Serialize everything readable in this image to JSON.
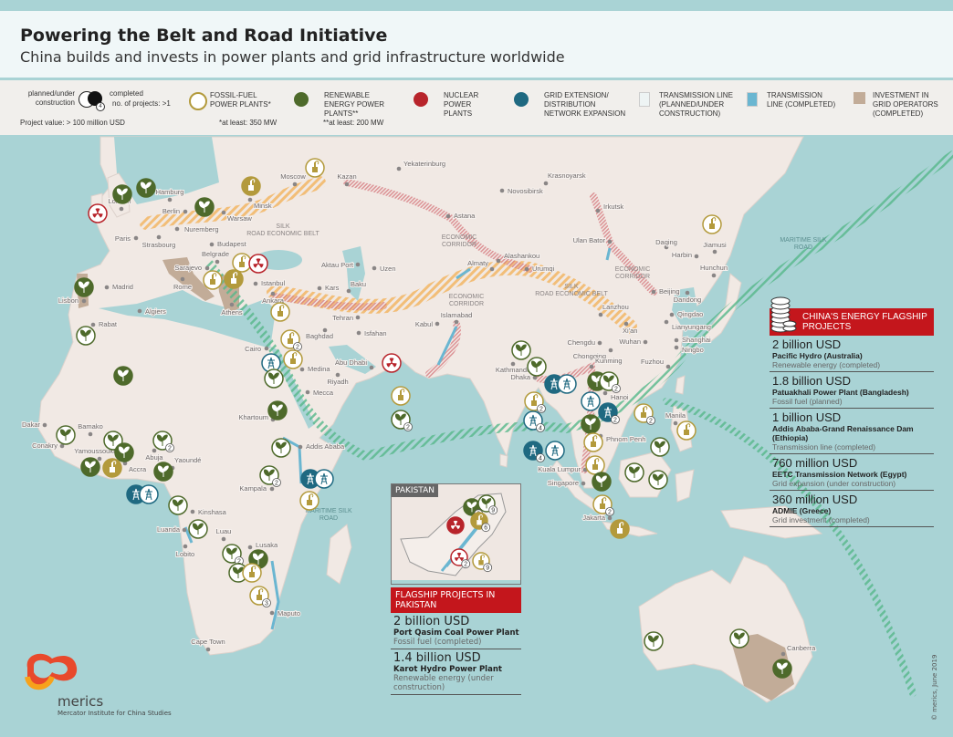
{
  "header": {
    "title": "Powering the Belt and Road Initiative",
    "subtitle": "China builds and invests in power plants and grid infrastructure worldwide"
  },
  "legend": {
    "planned": "planned/under construction",
    "completed": "completed",
    "multiple": "no. of projects: >1",
    "multiple_sample": "4",
    "project_value": "Project value: > 100 million USD",
    "fossil": "FOSSIL-FUEL POWER PLANTS*",
    "fossil_note": "*at least: 350 MW",
    "renewable": "RENEWABLE ENERGY POWER PLANTS**",
    "renewable_note": "**at least: 200 MW",
    "nuclear": "NUCLEAR POWER PLANTS",
    "grid": "GRID EXTENSION/ DISTRIBUTION NETWORK EXPANSION",
    "line_planned": "TRANSMISSION LINE (PLANNED/UNDER CONSTRUCTION)",
    "line_completed": "TRANSMISSION LINE (COMPLETED)",
    "investment": "INVESTMENT IN GRID OPERATORS (COMPLETED)"
  },
  "colors": {
    "fossil": "#b39a3c",
    "renewable": "#4e6a2b",
    "nuclear": "#b8242b",
    "grid": "#1f6981",
    "sea": "#a9d3d5",
    "land": "#f1e9e4",
    "investment": "#c2ac98",
    "accent_red": "#c4161c"
  },
  "corridor_labels": [
    "SILK ROAD ECONOMIC BELT",
    "ECONOMIC CORRIDOR",
    "ECONOMIC CORRIDOR",
    "SILK ROAD ECONOMIC BELT",
    "ECONOMIC CORRIDOR",
    "MARITIME SILK ROAD",
    "MARITIME SILK ROAD"
  ],
  "cities": [
    "London",
    "Hamburg",
    "Berlin",
    "Moscow",
    "Minsk",
    "Warsaw",
    "Paris",
    "Nuremberg",
    "Strasbourg",
    "Budapest",
    "Belgrade",
    "Sarajevo",
    "Rome",
    "Madrid",
    "Lisbon",
    "Algiers",
    "Rabat",
    "Athens",
    "Istanbul",
    "Ankara",
    "Tehran",
    "Isfahan",
    "Baghdad",
    "Kars",
    "Baku",
    "Aktau Port",
    "Uzen",
    "Cairo",
    "Medina",
    "Mecca",
    "Riyadh",
    "Abu Dhabi",
    "Khartoum",
    "Addis Ababa",
    "Kampala",
    "Kinshasa",
    "Luanda",
    "Luau",
    "Lobito",
    "Lusaka",
    "Maputo",
    "Cape Town",
    "Dakar",
    "Bamako",
    "Conakry",
    "Yamoussoukro",
    "Accra",
    "Abuja",
    "Yaoundé",
    "Kazan",
    "Yekaterinburg",
    "Novosibirsk",
    "Krasnoyarsk",
    "Irkutsk",
    "Astana",
    "Ulan Bator",
    "Alashankou",
    "Almaty",
    "Urumqi",
    "Kabul",
    "Islamabad",
    "Daqing",
    "Harbin",
    "Jiamusi",
    "Hunchun",
    "Beijing",
    "Dandong",
    "Qingdao",
    "Lianyungang",
    "Shanghai",
    "Ningbo",
    "Lanzhou",
    "Xi'an",
    "Wuhan",
    "Chengdu",
    "Chongqing",
    "Kunming",
    "Fuzhou",
    "Kathmandu",
    "Dhaka",
    "Hanoi",
    "Phnom Penh",
    "Kuala Lumpur",
    "Singapore",
    "Jakarta",
    "Manila",
    "Canberra"
  ],
  "markers": [
    {
      "type": "nuclear",
      "status": "planned"
    },
    {
      "type": "renewable",
      "status": "completed"
    },
    {
      "type": "renewable",
      "status": "completed"
    },
    {
      "type": "renewable",
      "status": "completed"
    },
    {
      "type": "fossil",
      "status": "completed"
    },
    {
      "type": "fossil",
      "status": "planned"
    },
    {
      "type": "fossil",
      "status": "planned"
    },
    {
      "type": "nuclear",
      "status": "planned"
    },
    {
      "type": "fossil",
      "status": "planned"
    },
    {
      "type": "fossil",
      "status": "completed"
    },
    {
      "type": "renewable",
      "status": "completed"
    },
    {
      "type": "renewable",
      "status": "planned"
    },
    {
      "type": "fossil",
      "status": "planned"
    },
    {
      "type": "fossil",
      "status": "planned",
      "count": "2"
    },
    {
      "type": "grid",
      "status": "planned"
    },
    {
      "type": "fossil",
      "status": "planned"
    },
    {
      "type": "renewable",
      "status": "planned"
    },
    {
      "type": "renewable",
      "status": "completed"
    },
    {
      "type": "renewable",
      "status": "completed"
    },
    {
      "type": "renewable",
      "status": "planned"
    },
    {
      "type": "renewable",
      "status": "planned"
    },
    {
      "type": "renewable",
      "status": "completed"
    },
    {
      "type": "renewable",
      "status": "planned",
      "count": "2"
    },
    {
      "type": "renewable",
      "status": "completed"
    },
    {
      "type": "fossil",
      "status": "completed"
    },
    {
      "type": "renewable",
      "status": "completed"
    },
    {
      "type": "grid",
      "status": "completed"
    },
    {
      "type": "grid",
      "status": "planned"
    },
    {
      "type": "renewable",
      "status": "planned"
    },
    {
      "type": "renewable",
      "status": "planned"
    },
    {
      "type": "renewable",
      "status": "planned"
    },
    {
      "type": "renewable",
      "status": "planned",
      "count": "2"
    },
    {
      "type": "grid",
      "status": "completed"
    },
    {
      "type": "grid",
      "status": "planned"
    },
    {
      "type": "fossil",
      "status": "planned"
    },
    {
      "type": "renewable",
      "status": "planned",
      "count": "2"
    },
    {
      "type": "renewable",
      "status": "completed"
    },
    {
      "type": "renewable",
      "status": "planned"
    },
    {
      "type": "fossil",
      "status": "planned"
    },
    {
      "type": "fossil",
      "status": "planned",
      "count": "3"
    },
    {
      "type": "nuclear",
      "status": "planned"
    },
    {
      "type": "fossil",
      "status": "planned"
    },
    {
      "type": "renewable",
      "status": "planned",
      "count": "2"
    },
    {
      "type": "renewable",
      "status": "planned"
    },
    {
      "type": "renewable",
      "status": "planned"
    },
    {
      "type": "grid",
      "status": "completed"
    },
    {
      "type": "grid",
      "status": "planned"
    },
    {
      "type": "fossil",
      "status": "planned",
      "count": "2"
    },
    {
      "type": "grid",
      "status": "planned",
      "count": "4"
    },
    {
      "type": "renewable",
      "status": "completed"
    },
    {
      "type": "renewable",
      "status": "planned",
      "count": "2"
    },
    {
      "type": "grid",
      "status": "planned"
    },
    {
      "type": "grid",
      "status": "completed",
      "count": "2"
    },
    {
      "type": "renewable",
      "status": "completed"
    },
    {
      "type": "fossil",
      "status": "planned"
    },
    {
      "type": "fossil",
      "status": "planned",
      "count": "2"
    },
    {
      "type": "fossil",
      "status": "planned"
    },
    {
      "type": "grid",
      "status": "completed",
      "count": "4"
    },
    {
      "type": "grid",
      "status": "planned"
    },
    {
      "type": "fossil",
      "status": "planned"
    },
    {
      "type": "renewable",
      "status": "completed"
    },
    {
      "type": "fossil",
      "status": "planned",
      "count": "2"
    },
    {
      "type": "fossil",
      "status": "completed"
    },
    {
      "type": "renewable",
      "status": "planned"
    },
    {
      "type": "renewable",
      "status": "planned"
    },
    {
      "type": "renewable",
      "status": "planned"
    },
    {
      "type": "fossil",
      "status": "planned"
    },
    {
      "type": "renewable",
      "status": "planned"
    },
    {
      "type": "renewable",
      "status": "planned"
    },
    {
      "type": "renewable",
      "status": "completed"
    }
  ],
  "flagship": {
    "heading": "CHINA'S ENERGY FLAGSHIP PROJECTS",
    "items": [
      {
        "amount": "2 billion USD",
        "name": "Pacific Hydro (Australia)",
        "type": "Renewable energy (completed)"
      },
      {
        "amount": "1.8 billion USD",
        "name": "Patuakhali Power Plant (Bangladesh)",
        "type": "Fossil fuel (planned)"
      },
      {
        "amount": "1 billion USD",
        "name": "Addis Ababa-Grand Renaissance Dam (Ethiopia)",
        "type": "Transmission line (completed)"
      },
      {
        "amount": "760 million USD",
        "name": "EETC Transmission Network (Egypt)",
        "type": "Grid expansion (under construction)"
      },
      {
        "amount": "360 million USD",
        "name": "ADMIE (Greece)",
        "type": "Grid investment (completed)"
      }
    ]
  },
  "pakistan": {
    "label": "PAKISTAN",
    "heading": "FLAGSHIP PROJECTS IN PAKISTAN",
    "markers": [
      {
        "type": "renewable",
        "status": "completed",
        "count": "3"
      },
      {
        "type": "renewable",
        "status": "planned",
        "count": "9"
      },
      {
        "type": "nuclear",
        "status": "completed"
      },
      {
        "type": "fossil",
        "status": "completed",
        "count": "6"
      },
      {
        "type": "nuclear",
        "status": "planned",
        "count": "2"
      },
      {
        "type": "fossil",
        "status": "planned",
        "count": "9"
      }
    ],
    "items": [
      {
        "amount": "2 billion USD",
        "name": "Port Qasim Coal Power Plant",
        "type": "Fossil fuel (completed)"
      },
      {
        "amount": "1.4 billion USD",
        "name": "Karot Hydro Power Plant",
        "type": "Renewable energy (under construction)"
      }
    ]
  },
  "logo": {
    "name": "merics",
    "sub": "Mercator Institute for China Studies"
  },
  "copyright": "© merics, June 2019"
}
